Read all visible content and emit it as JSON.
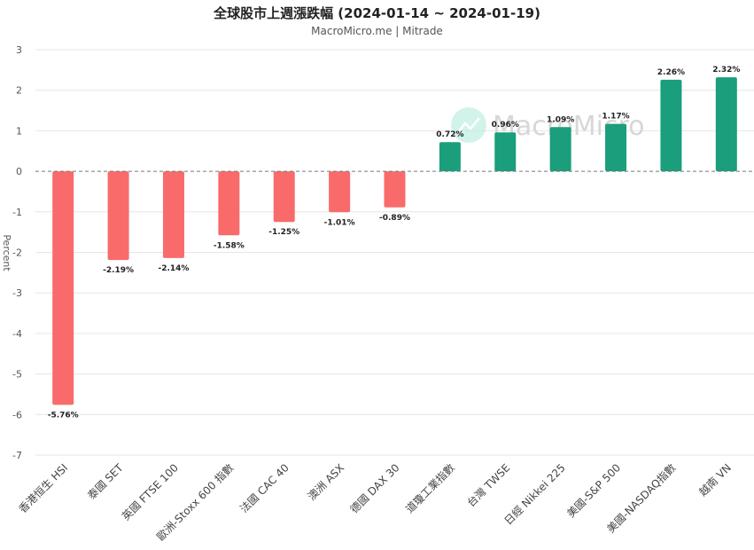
{
  "chart_data": {
    "type": "bar",
    "title": "全球股市上週漲跌幅 (2024-01-14 ~ 2024-01-19)",
    "subtitle": "MacroMicro.me | Mitrade",
    "ylabel": "Percent",
    "ylim": [
      -7,
      3
    ],
    "yticks": [
      3,
      2,
      1,
      0,
      -1,
      -2,
      -3,
      -4,
      -5,
      -6,
      -7
    ],
    "categories": [
      "香港恒生 HSI",
      "泰國 SET",
      "英國 FTSE 100",
      "歐洲-Stoxx 600 指數",
      "法國 CAC 40",
      "澳洲 ASX",
      "德國 DAX 30",
      "道瓊工業指數",
      "台灣 TWSE",
      "日經 Nikkei 225",
      "美國-S&P 500",
      "美國-NASDAQ指數",
      "越南 VN"
    ],
    "values": [
      -5.76,
      -2.19,
      -2.14,
      -1.58,
      -1.25,
      -1.01,
      -0.89,
      0.72,
      0.96,
      1.09,
      1.17,
      2.26,
      2.32
    ],
    "data_labels": [
      "-5.76%",
      "-2.19%",
      "-2.14%",
      "-1.58%",
      "-1.25%",
      "-1.01%",
      "-0.89%",
      "0.72%",
      "0.96%",
      "1.09%",
      "1.17%",
      "2.26%",
      "2.32%"
    ],
    "colors": {
      "negative": "#f96b6b",
      "positive": "#1a9e7c"
    },
    "grid": true,
    "zero_line": "dashed"
  },
  "watermark": {
    "text": "MacroMicro",
    "icon": "macromicro-logo-icon"
  }
}
